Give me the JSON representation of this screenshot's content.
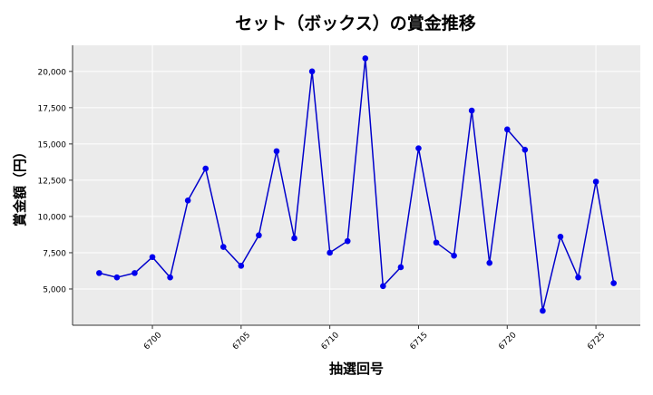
{
  "chart_data": {
    "type": "line",
    "title": "セット（ボックス）の賞金推移",
    "xlabel": "抽選回号",
    "ylabel": "賞金額（円）",
    "grid": true,
    "legend": false,
    "xlim": [
      6695.5,
      6727.5
    ],
    "ylim": [
      2500,
      21800
    ],
    "xticks": [
      6700,
      6705,
      6710,
      6715,
      6720,
      6725
    ],
    "yticks": [
      5000,
      7500,
      10000,
      12500,
      15000,
      17500,
      20000
    ],
    "ytick_labels": [
      "5,000",
      "7,500",
      "10,000",
      "12,500",
      "15,000",
      "17,500",
      "20,000"
    ],
    "series": [
      {
        "color": "#0000cc",
        "marker_color": "#0000ee",
        "x": [
          6697,
          6698,
          6699,
          6700,
          6701,
          6702,
          6703,
          6704,
          6705,
          6706,
          6707,
          6708,
          6709,
          6710,
          6711,
          6712,
          6713,
          6714,
          6715,
          6716,
          6717,
          6718,
          6719,
          6720,
          6721,
          6722,
          6723,
          6724,
          6725,
          6726
        ],
        "y": [
          6100,
          5800,
          6100,
          7200,
          5800,
          11100,
          13300,
          7900,
          6600,
          8700,
          14500,
          8500,
          20000,
          7500,
          8300,
          20900,
          5200,
          6500,
          14700,
          8200,
          7300,
          17300,
          6800,
          16000,
          14600,
          3500,
          8600,
          5800,
          12400,
          5400
        ]
      }
    ]
  }
}
